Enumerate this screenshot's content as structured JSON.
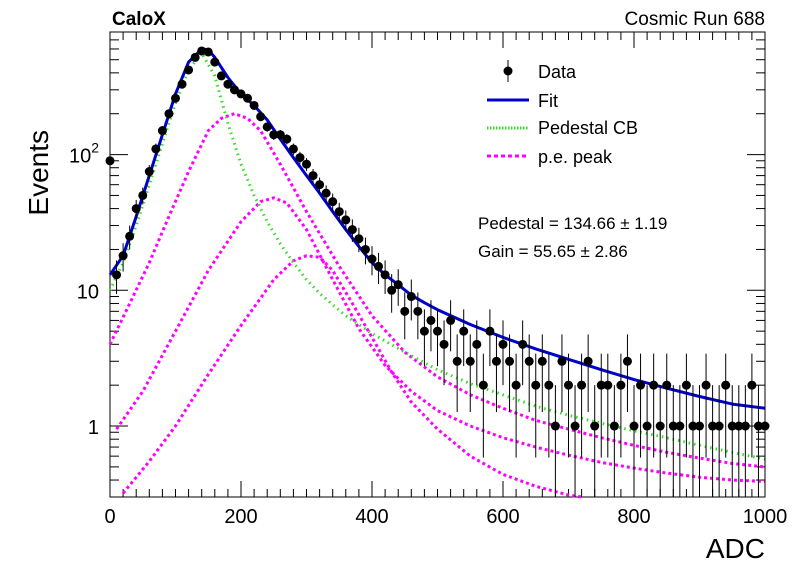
{
  "header": {
    "left_label": "CaloX",
    "right_label": "Cosmic Run 688"
  },
  "chart_data": {
    "type": "scatter",
    "xlabel": "ADC",
    "ylabel": "Events",
    "xlim": [
      0,
      1000
    ],
    "ylim": [
      0.3,
      800
    ],
    "y_scale": "log",
    "x_ticks": [
      0,
      200,
      400,
      600,
      800,
      1000
    ],
    "y_tick_labels": [
      {
        "value": 1,
        "label": "1"
      },
      {
        "value": 10,
        "label": "10"
      },
      {
        "value": 100,
        "label": "10",
        "exponent": "2"
      }
    ],
    "grid": false,
    "legend_position": "top-right",
    "legend": [
      {
        "label": "Data",
        "style": "marker",
        "color": "#000000"
      },
      {
        "label": "Fit",
        "style": "line",
        "color": "#0000cc"
      },
      {
        "label": "Pedestal CB",
        "style": "dotted",
        "color": "#33dd22"
      },
      {
        "label": "p.e. peak",
        "style": "dashed",
        "color": "#ff00ff"
      }
    ],
    "annotations": [
      "Pedestal = 134.66 ± 1.19",
      "Gain = 55.65 ± 2.86"
    ],
    "series": [
      {
        "name": "Data",
        "kind": "points",
        "x": [
          0,
          10,
          20,
          30,
          40,
          50,
          60,
          70,
          80,
          90,
          100,
          110,
          120,
          130,
          140,
          150,
          160,
          170,
          180,
          190,
          200,
          210,
          220,
          230,
          240,
          250,
          260,
          270,
          280,
          290,
          300,
          310,
          320,
          330,
          340,
          350,
          360,
          370,
          380,
          390,
          400,
          410,
          420,
          430,
          440,
          450,
          460,
          470,
          480,
          490,
          500,
          510,
          520,
          530,
          540,
          550,
          560,
          570,
          580,
          590,
          600,
          610,
          620,
          630,
          640,
          650,
          660,
          670,
          680,
          690,
          700,
          710,
          720,
          730,
          740,
          750,
          760,
          770,
          780,
          790,
          800,
          810,
          820,
          830,
          840,
          850,
          860,
          870,
          880,
          890,
          900,
          910,
          920,
          930,
          940,
          950,
          960,
          970,
          980,
          990,
          1000
        ],
        "y": [
          90,
          13,
          18,
          25,
          40,
          50,
          75,
          110,
          150,
          200,
          260,
          330,
          420,
          520,
          580,
          570,
          480,
          380,
          330,
          300,
          280,
          260,
          230,
          190,
          160,
          140,
          140,
          130,
          110,
          95,
          85,
          70,
          60,
          52,
          45,
          38,
          33,
          28,
          24,
          20,
          17,
          15,
          13,
          10,
          11,
          7,
          9,
          7,
          5,
          6,
          5,
          4,
          6,
          3,
          5,
          3,
          4,
          2,
          5,
          3,
          4,
          3,
          2,
          4,
          3,
          2,
          3,
          2,
          1,
          3,
          2,
          1,
          2,
          3,
          1,
          2,
          2,
          1,
          2,
          3,
          1,
          2,
          1,
          2,
          1,
          2,
          1,
          1,
          2,
          1,
          1,
          2,
          1,
          1,
          2,
          1,
          1,
          1,
          2,
          1,
          1
        ]
      },
      {
        "name": "Fit",
        "kind": "line",
        "x": [
          0,
          20,
          40,
          60,
          80,
          100,
          120,
          140,
          150,
          160,
          180,
          200,
          220,
          240,
          260,
          280,
          300,
          320,
          340,
          360,
          380,
          400,
          420,
          440,
          460,
          480,
          500,
          550,
          600,
          650,
          700,
          750,
          800,
          850,
          900,
          950,
          1000
        ],
        "y": [
          13,
          18,
          35,
          70,
          140,
          280,
          480,
          600,
          590,
          520,
          370,
          280,
          230,
          180,
          130,
          95,
          70,
          52,
          38,
          28,
          21,
          16,
          13,
          11,
          9.2,
          8.1,
          7.2,
          5.6,
          4.5,
          3.7,
          3.1,
          2.6,
          2.2,
          1.9,
          1.65,
          1.45,
          1.35
        ]
      },
      {
        "name": "Pedestal CB",
        "kind": "dotted",
        "x": [
          0,
          20,
          40,
          60,
          80,
          100,
          120,
          140,
          160,
          180,
          200,
          220,
          240,
          260,
          280,
          300,
          320,
          340,
          360,
          380,
          400,
          450,
          500,
          550,
          600,
          650,
          700,
          750,
          800,
          850,
          900,
          950,
          1000
        ],
        "y": [
          10,
          16,
          30,
          60,
          120,
          240,
          420,
          560,
          380,
          170,
          85,
          50,
          32,
          22,
          16,
          12,
          9.5,
          7.8,
          6.5,
          5.6,
          4.8,
          3.5,
          2.6,
          2.05,
          1.7,
          1.4,
          1.2,
          1.05,
          0.92,
          0.82,
          0.72,
          0.64,
          0.57
        ]
      },
      {
        "name": "p.e. peak 1",
        "kind": "dashed",
        "x": [
          0,
          30,
          60,
          90,
          120,
          150,
          170,
          190,
          210,
          230,
          260,
          300,
          350,
          400,
          450,
          500,
          550,
          600,
          650,
          700,
          750,
          800,
          850,
          900,
          950,
          1000
        ],
        "y": [
          4,
          8,
          16,
          35,
          75,
          150,
          185,
          200,
          185,
          150,
          85,
          38,
          15,
          6.5,
          3.5,
          2.3,
          1.7,
          1.35,
          1.1,
          0.95,
          0.82,
          0.72,
          0.64,
          0.58,
          0.53,
          0.5
        ]
      },
      {
        "name": "p.e. peak 2",
        "kind": "dashed",
        "x": [
          10,
          50,
          100,
          150,
          200,
          230,
          250,
          270,
          300,
          340,
          380,
          420,
          460,
          500,
          550,
          600,
          650,
          700,
          750,
          800,
          850,
          900,
          950,
          1000
        ],
        "y": [
          0.95,
          1.8,
          5,
          14,
          32,
          45,
          48,
          44,
          28,
          12,
          5.2,
          2.8,
          1.8,
          1.3,
          1,
          0.82,
          0.7,
          0.61,
          0.54,
          0.49,
          0.45,
          0.42,
          0.4,
          0.39
        ]
      },
      {
        "name": "p.e. peak 3",
        "kind": "dashed",
        "x": [
          20,
          60,
          100,
          150,
          200,
          250,
          280,
          300,
          320,
          340,
          370,
          400,
          430,
          460,
          500,
          550,
          600,
          650,
          700,
          720
        ],
        "y": [
          0.32,
          0.55,
          1,
          2.4,
          5.5,
          12,
          16.5,
          18,
          17.5,
          14,
          8,
          4.5,
          2.5,
          1.5,
          0.95,
          0.6,
          0.44,
          0.36,
          0.31,
          0.3
        ]
      }
    ]
  }
}
